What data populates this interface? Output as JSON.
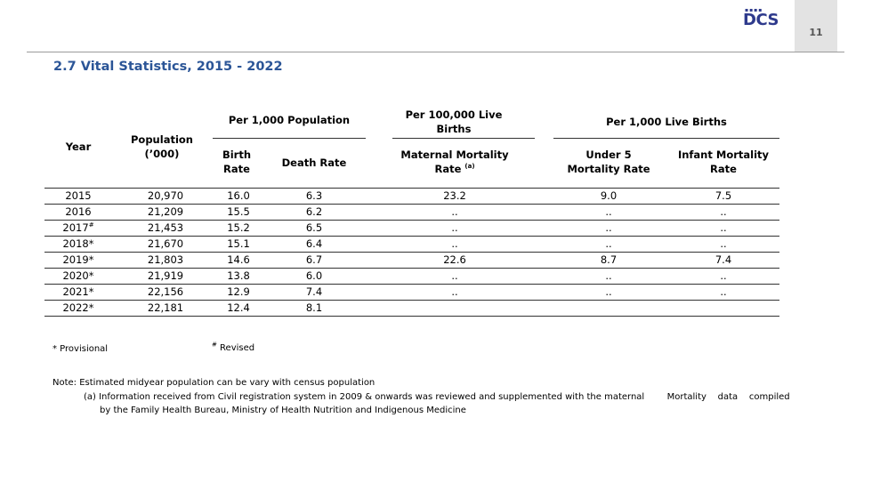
{
  "header": {
    "logo_text": "DCS",
    "page_number": "11"
  },
  "title": "2.7 Vital Statistics, 2015 - 2022",
  "table": {
    "headers": {
      "year": "Year",
      "population": "Population (’000)",
      "per_1000_population": "Per 1,000  Population",
      "birth_rate": "Birth Rate",
      "death_rate": "Death  Rate",
      "per_100000": "Per 100,000 Live Births",
      "maternal_mortality": "Maternal Mortality Rate",
      "maternal_mortality_note": "(a)",
      "per_1000_live_births": "Per 1,000 Live Births",
      "under5": "Under 5 Mortality Rate",
      "infant": "Infant Mortality Rate"
    },
    "rows": [
      {
        "year": "2015",
        "mark": "",
        "pop": "20,970",
        "birth": "16.0",
        "death": "6.3",
        "mmr": "23.2",
        "u5": "9.0",
        "imr": "7.5"
      },
      {
        "year": "2016",
        "mark": "",
        "pop": "21,209",
        "birth": "15.5",
        "death": "6.2",
        "mmr": "..",
        "u5": "..",
        "imr": ".."
      },
      {
        "year": "2017",
        "mark": "#",
        "pop": "21,453",
        "birth": "15.2",
        "death": "6.5",
        "mmr": "..",
        "u5": "..",
        "imr": ".."
      },
      {
        "year": "2018*",
        "mark": "",
        "pop": "21,670",
        "birth": "15.1",
        "death": "6.4",
        "mmr": "..",
        "u5": "..",
        "imr": ".."
      },
      {
        "year": "2019*",
        "mark": "",
        "pop": "21,803",
        "birth": "14.6",
        "death": "6.7",
        "mmr": "22.6",
        "u5": "8.7",
        "imr": "7.4"
      },
      {
        "year": "2020*",
        "mark": "",
        "pop": "21,919",
        "birth": "13.8",
        "death": "6.0",
        "mmr": "..",
        "u5": "..",
        "imr": ".."
      },
      {
        "year": "2021*",
        "mark": "",
        "pop": "22,156",
        "birth": "12.9",
        "death": "7.4",
        "mmr": "..",
        "u5": "..",
        "imr": ".."
      },
      {
        "year": "2022*",
        "mark": "",
        "pop": "22,181",
        "birth": "12.4",
        "death": "8.1",
        "mmr": "",
        "u5": "",
        "imr": ""
      }
    ]
  },
  "footnotes": {
    "provisional": "* Provisional",
    "revised_mark": "#",
    "revised": " Revised",
    "note": "Note:  Estimated midyear population can be vary with census population",
    "note_a_line1": "(a) Information received from Civil registration system in 2009 & onwards was reviewed and supplemented with the maternal        Mortality    data    compiled",
    "note_a_line2": "by the Family Health Bureau, Ministry of Health Nutrition and Indigenous Medicine"
  }
}
